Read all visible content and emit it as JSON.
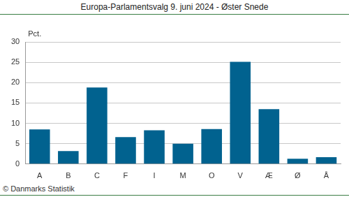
{
  "chart_data": {
    "type": "bar",
    "title": "Europa-Parlamentsvalg 9. juni 2024 - Øster Snede",
    "ylabel": "Pct.",
    "annotation": "© Danmarks Statistik",
    "categories": [
      "A",
      "B",
      "C",
      "F",
      "I",
      "M",
      "O",
      "V",
      "Æ",
      "Ø",
      "Å"
    ],
    "values": [
      8.5,
      3.2,
      18.8,
      6.6,
      8.3,
      5.0,
      8.6,
      25.1,
      13.5,
      1.3,
      1.7
    ],
    "color": "#01628f",
    "ylim": [
      0,
      30
    ],
    "yticks": [
      0,
      5,
      10,
      15,
      20,
      25,
      30
    ],
    "grid": true
  }
}
